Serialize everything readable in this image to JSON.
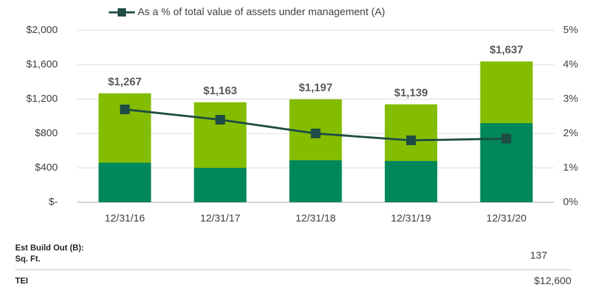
{
  "chart_data": {
    "type": "bar",
    "categories": [
      "12/31/16",
      "12/31/17",
      "12/31/18",
      "12/31/19",
      "12/31/20"
    ],
    "bar_series": [
      {
        "color": "#00875a",
        "values": [
          460,
          400,
          490,
          480,
          920
        ]
      },
      {
        "color": "#84bd00",
        "values": [
          807,
          763,
          707,
          659,
          717
        ]
      }
    ],
    "totals": [
      1267,
      1163,
      1197,
      1139,
      1637
    ],
    "total_labels": [
      "$1,267",
      "$1,163",
      "$1,197",
      "$1,139",
      "$1,637"
    ],
    "series": [
      {
        "name": "As a % of total value of assets under management (A)",
        "color": "#1e4d45",
        "axis": "y2",
        "values": [
          2.7,
          2.4,
          2.0,
          1.8,
          1.85
        ]
      }
    ],
    "ylim": [
      0,
      2000
    ],
    "yticks": [
      {
        "value": 0,
        "label": "$-"
      },
      {
        "value": 400,
        "label": "$400"
      },
      {
        "value": 800,
        "label": "$800"
      },
      {
        "value": 1200,
        "label": "$1,200"
      },
      {
        "value": 1600,
        "label": "$1,600"
      },
      {
        "value": 2000,
        "label": "$2,000"
      }
    ],
    "y2lim": [
      0,
      5
    ],
    "y2ticks": [
      {
        "value": 0,
        "label": "0%"
      },
      {
        "value": 1,
        "label": "1%"
      },
      {
        "value": 2,
        "label": "2%"
      },
      {
        "value": 3,
        "label": "3%"
      },
      {
        "value": 4,
        "label": "4%"
      },
      {
        "value": 5,
        "label": "5%"
      }
    ],
    "grid": true,
    "legend": "top"
  },
  "footer_table": {
    "heading": "Est Build Out (B):",
    "rows": [
      [
        "Sq. Ft.",
        "137"
      ],
      [
        "TEI",
        "$12,600"
      ]
    ]
  }
}
